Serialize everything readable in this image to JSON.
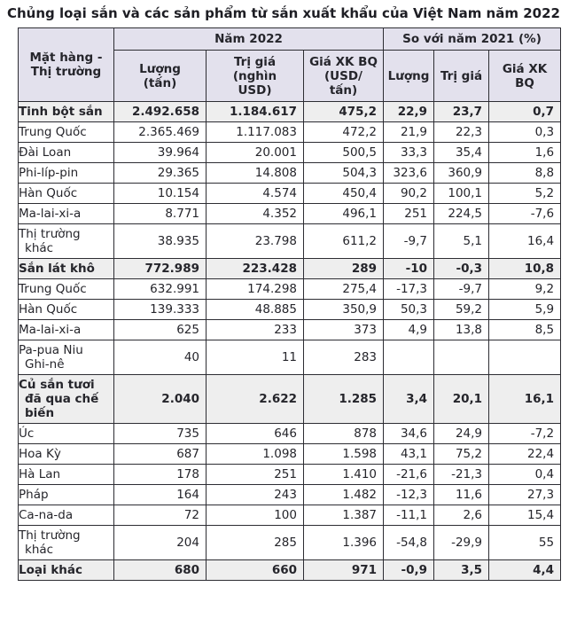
{
  "title": "Chủng loại sắn và các sản phẩm từ sắn xuất khẩu của Việt Nam năm 2022",
  "table": {
    "corner_header": "Mặt hàng -\nThị trường",
    "group_headers": {
      "year_2022": "Năm 2022",
      "vs_2021": "So với năm 2021 (%)"
    },
    "sub_headers": {
      "quantity_2022": "Lượng\n(tấn)",
      "value_2022": "Trị giá\n(nghìn\nUSD)",
      "avg_price_2022": "Giá XK BQ\n(USD/\ntấn)",
      "quantity_vs": "Lượng",
      "value_vs": "Trị giá",
      "avg_price_vs": "Giá XK\nBQ"
    },
    "rows": [
      {
        "label": "Tinh bột sắn",
        "bold": true,
        "values": [
          "2.492.658",
          "1.184.617",
          "475,2",
          "22,9",
          "23,7",
          "0,7"
        ]
      },
      {
        "label": "Trung Quốc",
        "bold": false,
        "values": [
          "2.365.469",
          "1.117.083",
          "472,2",
          "21,9",
          "22,3",
          "0,3"
        ]
      },
      {
        "label": "Đài Loan",
        "bold": false,
        "values": [
          "39.964",
          "20.001",
          "500,5",
          "33,3",
          "35,4",
          "1,6"
        ]
      },
      {
        "label": "Phi-líp-pin",
        "bold": false,
        "values": [
          "29.365",
          "14.808",
          "504,3",
          "323,6",
          "360,9",
          "8,8"
        ]
      },
      {
        "label": "Hàn Quốc",
        "bold": false,
        "values": [
          "10.154",
          "4.574",
          "450,4",
          "90,2",
          "100,1",
          "5,2"
        ]
      },
      {
        "label": "Ma-lai-xi-a",
        "bold": false,
        "values": [
          "8.771",
          "4.352",
          "496,1",
          "251",
          "224,5",
          "-7,6"
        ]
      },
      {
        "label": "Thị trường khác",
        "bold": false,
        "values": [
          "38.935",
          "23.798",
          "611,2",
          "-9,7",
          "5,1",
          "16,4"
        ]
      },
      {
        "label": "Sắn lát khô",
        "bold": true,
        "values": [
          "772.989",
          "223.428",
          "289",
          "-10",
          "-0,3",
          "10,8"
        ]
      },
      {
        "label": "Trung Quốc",
        "bold": false,
        "values": [
          "632.991",
          "174.298",
          "275,4",
          "-17,3",
          "-9,7",
          "9,2"
        ]
      },
      {
        "label": "Hàn Quốc",
        "bold": false,
        "values": [
          "139.333",
          "48.885",
          "350,9",
          "50,3",
          "59,2",
          "5,9"
        ]
      },
      {
        "label": "Ma-lai-xi-a",
        "bold": false,
        "values": [
          "625",
          "233",
          "373",
          "4,9",
          "13,8",
          "8,5"
        ]
      },
      {
        "label": "Pa-pua Niu Ghi-nê",
        "bold": false,
        "values": [
          "40",
          "11",
          "283",
          "",
          "",
          ""
        ]
      },
      {
        "label": "Củ sắn tươi đã qua chế biến",
        "bold": true,
        "values": [
          "2.040",
          "2.622",
          "1.285",
          "3,4",
          "20,1",
          "16,1"
        ]
      },
      {
        "label": "Úc",
        "bold": false,
        "values": [
          "735",
          "646",
          "878",
          "34,6",
          "24,9",
          "-7,2"
        ]
      },
      {
        "label": "Hoa Kỳ",
        "bold": false,
        "values": [
          "687",
          "1.098",
          "1.598",
          "43,1",
          "75,2",
          "22,4"
        ]
      },
      {
        "label": "Hà Lan",
        "bold": false,
        "values": [
          "178",
          "251",
          "1.410",
          "-21,6",
          "-21,3",
          "0,4"
        ]
      },
      {
        "label": "Pháp",
        "bold": false,
        "values": [
          "164",
          "243",
          "1.482",
          "-12,3",
          "11,6",
          "27,3"
        ]
      },
      {
        "label": "Ca-na-da",
        "bold": false,
        "values": [
          "72",
          "100",
          "1.387",
          "-11,1",
          "2,6",
          "15,4"
        ]
      },
      {
        "label": "Thị trường khác",
        "bold": false,
        "values": [
          "204",
          "285",
          "1.396",
          "-54,8",
          "-29,9",
          "55"
        ]
      },
      {
        "label": "Loại khác",
        "bold": true,
        "values": [
          "680",
          "660",
          "971",
          "-0,9",
          "3,5",
          "4,4"
        ]
      }
    ]
  },
  "colors": {
    "header_bg": "#e3e1ed",
    "section_row_bg": "#eeeeee",
    "border": "#2d2d33",
    "text": "#25252b"
  }
}
